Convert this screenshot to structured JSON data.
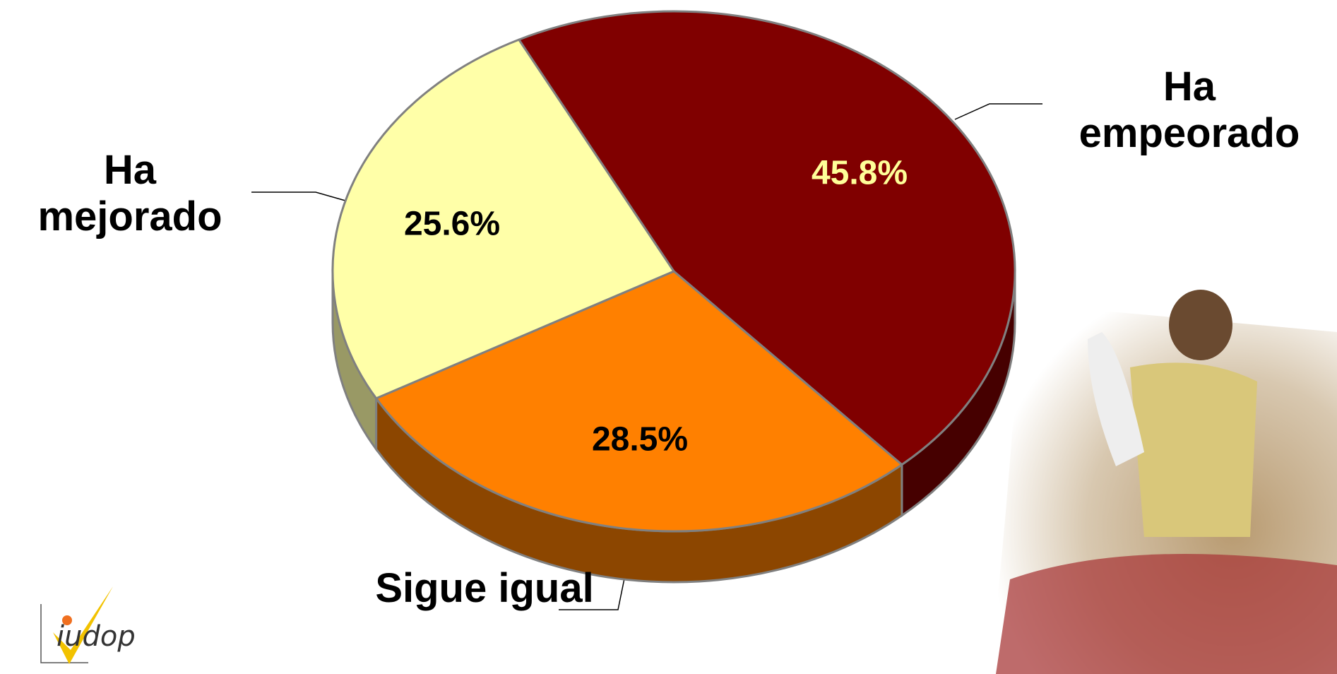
{
  "chart_data": {
    "type": "pie3d",
    "categories": [
      "Ha empeorado",
      "Sigue igual",
      "Ha mejorado"
    ],
    "values": [
      45.8,
      28.5,
      25.6
    ],
    "value_labels": [
      "45.8%",
      "28.5%",
      "25.6%"
    ],
    "colors": [
      "#800000",
      "#ff8000",
      "#ffffa8"
    ]
  },
  "logo": "iudop"
}
